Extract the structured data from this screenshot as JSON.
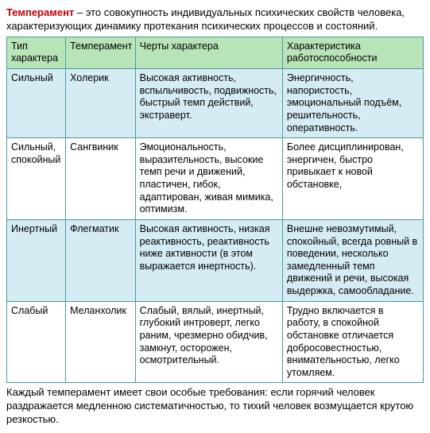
{
  "intro": {
    "term": "Темперамент",
    "text": " – это совокупность индивидуальных психических свойств человека, характеризующих динамику протекания психических процессов и состояний."
  },
  "table": {
    "headers": [
      "Тип характера",
      "Темперамент",
      "Черты характера",
      "Характеристика работоспособности"
    ],
    "rows": [
      {
        "bg": "row-blue",
        "cells": [
          "Сильный",
          "Холерик",
          "Высокая активность, вспыльчивость, подвижность, быстрый темп действий, экстраверт.",
          "Энергичность, напористость, эмоциональный подъём, решительность, оперативность."
        ]
      },
      {
        "bg": "row-white",
        "cells": [
          "Сильный, спокойный",
          "Сангвиник",
          "Эмоциональность, выразительность, высокие темп речи и движений, пластичен, гибок, адаптирован, живая мимика, оптимизм.",
          "Более дисциплинирован, энергичен, быстро привыкает к новой обстановке,"
        ]
      },
      {
        "bg": "row-blue",
        "cells": [
          "Инертный",
          "Флегматик",
          "Высокая активность, низкая реактивность, реактивность ниже активности (в этом выражается инертность).",
          "Внешне невозмутимый, спокойный, всегда ровный в поведении, несколько замедленный темп движений и речи, высокая выдержка, самообладание."
        ]
      },
      {
        "bg": "row-white",
        "cells": [
          "Слабый",
          "Меланхолик",
          "Слабый, вялый, инертный, глубокий интроверт, легко раним, чрезмерно обидчив, замкнут, осторожен, осмотрительный.",
          "Трудно включается в работу, в спокойной обстановке отличается добросовестностью, внимательностью, легко утомляем."
        ]
      }
    ]
  },
  "outro": "Каждый темперамент имеет свои особые требования: если горячий человек раздражается медленною систематичностью, то тихий человек возмущается крутою резкостью."
}
